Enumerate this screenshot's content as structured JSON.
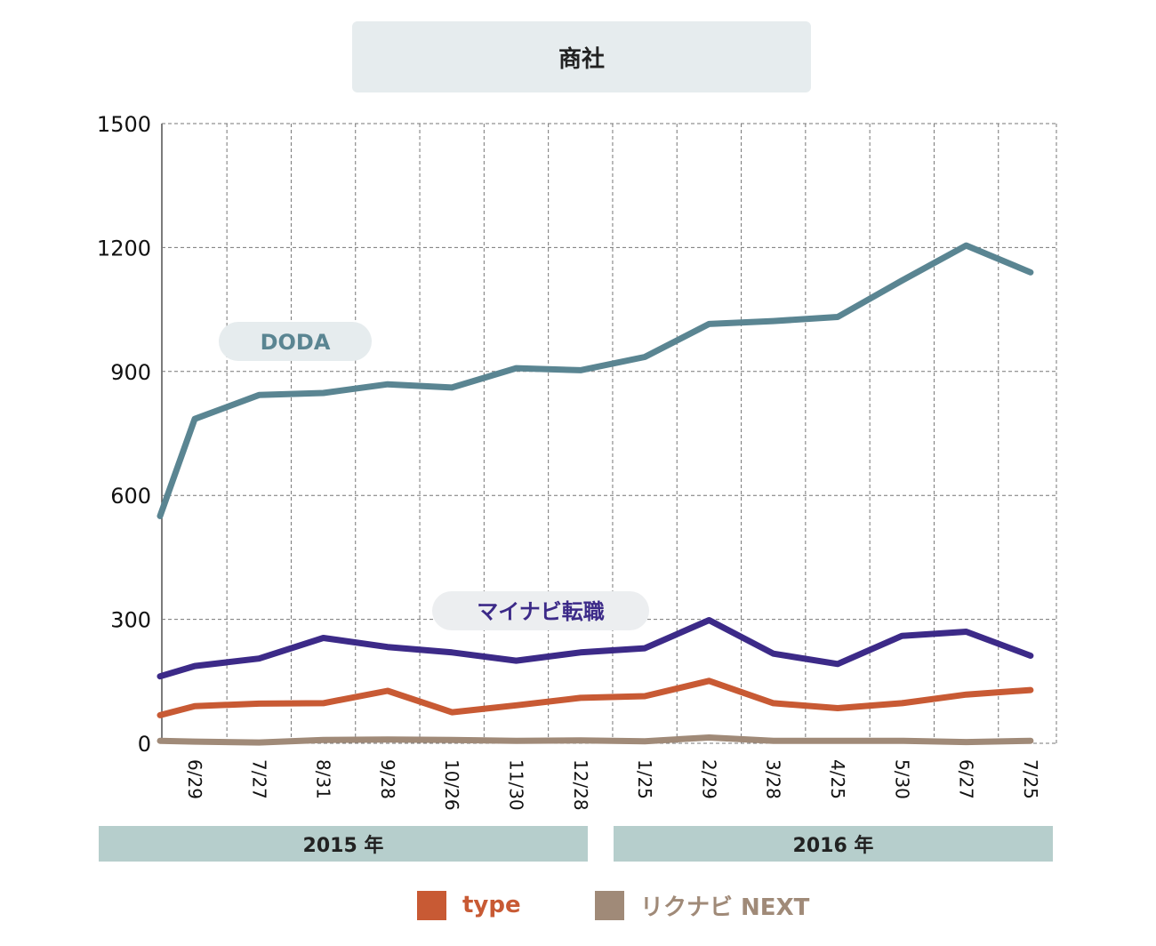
{
  "chart_data": {
    "type": "line",
    "title": "商社",
    "ylim": [
      0,
      1500
    ],
    "yticks": [
      0,
      300,
      600,
      900,
      1200,
      1500
    ],
    "categories": [
      "6/29",
      "7/27",
      "8/31",
      "9/28",
      "10/26",
      "11/30",
      "12/28",
      "1/25",
      "2/29",
      "3/28",
      "4/25",
      "5/30",
      "6/27",
      "7/25"
    ],
    "year_groups": [
      "2015 年",
      "2016 年"
    ],
    "grid": true,
    "series": [
      {
        "name": "DODA",
        "color": "#5a8592",
        "start": 550,
        "values": [
          785,
          843,
          848,
          869,
          861,
          908,
          903,
          935,
          1015,
          1022,
          1032,
          1120,
          1205,
          1140
        ]
      },
      {
        "name": "マイナビ転職",
        "color": "#3c2a88",
        "start": 162,
        "values": [
          187,
          205,
          255,
          233,
          220,
          200,
          220,
          230,
          298,
          217,
          192,
          260,
          270,
          212
        ]
      },
      {
        "name": "type",
        "color": "#c85a34",
        "start": 68,
        "values": [
          90,
          96,
          97,
          127,
          75,
          92,
          110,
          114,
          151,
          97,
          85,
          97,
          118,
          129
        ]
      },
      {
        "name": "リクナビ NEXT",
        "color": "#a08a78",
        "start": 6,
        "values": [
          4,
          2,
          8,
          9,
          8,
          6,
          7,
          5,
          14,
          6,
          6,
          6,
          3,
          6
        ]
      }
    ],
    "inline_labels": [
      {
        "text": "DODA",
        "color": "#5a8592",
        "bg": "#e6ecee"
      },
      {
        "text": "マイナビ転職",
        "color": "#3c2a88",
        "bg": "#eceef0"
      }
    ],
    "legend": [
      {
        "label": "type",
        "color": "#c85a34"
      },
      {
        "label": "リクナビ NEXT",
        "color": "#a08a78"
      }
    ]
  }
}
